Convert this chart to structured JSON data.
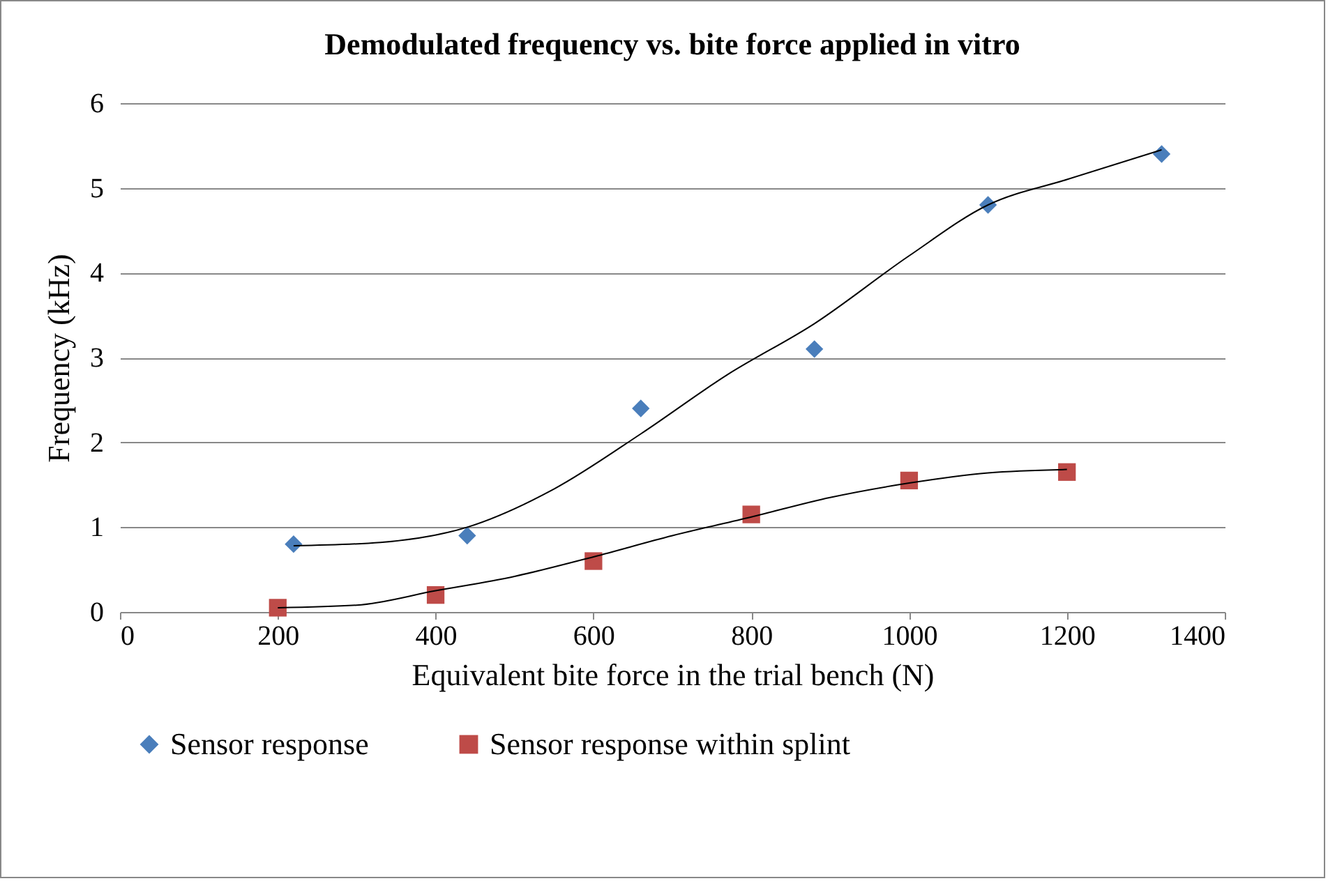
{
  "chart_data": {
    "type": "scatter",
    "title": "Demodulated frequency vs. bite force applied in vitro",
    "xlabel": "Equivalent bite force in the trial bench (N)",
    "ylabel": "Frequency (kHz)",
    "xlim": [
      0,
      1400
    ],
    "xticks": [
      0,
      200,
      400,
      600,
      800,
      1000,
      1200,
      1400
    ],
    "ylim": [
      0,
      6
    ],
    "yticks": [
      0,
      1,
      2,
      3,
      4,
      5,
      6
    ],
    "grid": "y",
    "legend": "bottom",
    "series": [
      {
        "name": "Sensor response",
        "type": "scatter",
        "marker": "diamond",
        "color": "#4a7ebb",
        "x": [
          220,
          440,
          660,
          880,
          1100,
          1320
        ],
        "values": [
          0.8,
          0.9,
          2.4,
          3.1,
          4.8,
          5.4
        ]
      },
      {
        "name": "Sensor response within splint",
        "type": "scatter",
        "marker": "square",
        "color": "#be4b48",
        "x": [
          200,
          400,
          600,
          800,
          1000,
          1200
        ],
        "values": [
          0.05,
          0.2,
          0.6,
          1.15,
          1.55,
          1.65
        ]
      },
      {
        "type": "line",
        "marker": "none",
        "color": "#000000",
        "x": [
          220,
          330,
          440,
          550,
          660,
          770,
          880,
          1000,
          1100,
          1200,
          1320
        ],
        "values": [
          0.78,
          0.82,
          1.0,
          1.45,
          2.1,
          2.8,
          3.4,
          4.2,
          4.8,
          5.1,
          5.45
        ]
      },
      {
        "type": "line",
        "marker": "none",
        "color": "#000000",
        "x": [
          200,
          300,
          400,
          500,
          600,
          700,
          800,
          900,
          1000,
          1100,
          1200
        ],
        "values": [
          0.05,
          0.08,
          0.25,
          0.42,
          0.65,
          0.9,
          1.12,
          1.35,
          1.52,
          1.64,
          1.68
        ]
      }
    ]
  }
}
